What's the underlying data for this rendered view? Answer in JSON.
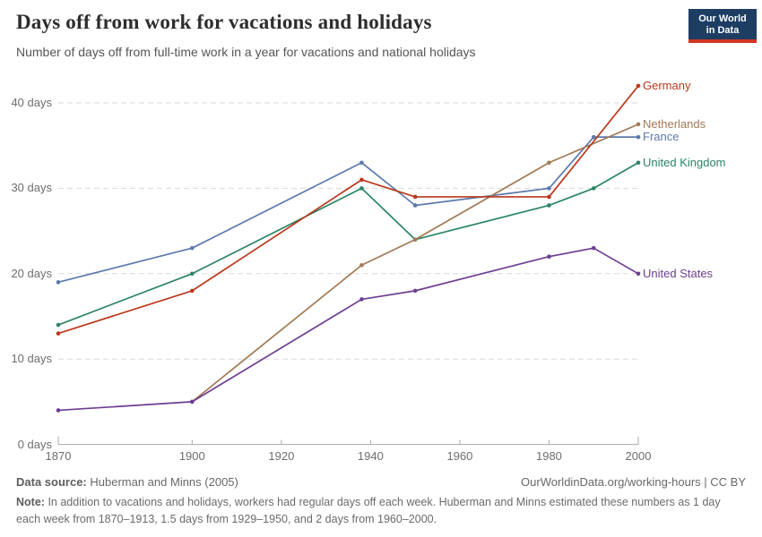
{
  "header": {
    "title": "Days off from work for vacations and holidays",
    "subtitle": "Number of days off from full-time work in a year for vacations and national holidays",
    "logo": {
      "line1": "Our World",
      "line2": "in Data",
      "bg_color": "#1d3d63",
      "accent_color": "#d33623"
    }
  },
  "chart_data": {
    "type": "line",
    "title": "Days off from work for vacations and holidays",
    "xlabel": "",
    "ylabel": "days",
    "xlim": [
      1870,
      2000
    ],
    "ylim": [
      0,
      43
    ],
    "grid": "horizontal-dashed",
    "legend_position": "right-end-labels",
    "x_ticks": [
      1870,
      1900,
      1920,
      1940,
      1960,
      1980,
      2000
    ],
    "y_ticks": [
      {
        "value": 0,
        "label": "0 days"
      },
      {
        "value": 10,
        "label": "10 days"
      },
      {
        "value": 20,
        "label": "20 days"
      },
      {
        "value": 30,
        "label": "30 days"
      },
      {
        "value": 40,
        "label": "40 days"
      }
    ],
    "series": [
      {
        "name": "France",
        "color": "#5d7aad",
        "points": [
          [
            1870,
            19
          ],
          [
            1900,
            23
          ],
          [
            1938,
            33
          ],
          [
            1950,
            28
          ],
          [
            1980,
            30
          ],
          [
            1990,
            36
          ],
          [
            2000,
            36
          ]
        ]
      },
      {
        "name": "United Kingdom",
        "color": "#2c8465",
        "points": [
          [
            1870,
            14
          ],
          [
            1900,
            20
          ],
          [
            1938,
            30
          ],
          [
            1950,
            24
          ],
          [
            1980,
            28
          ],
          [
            1990,
            30
          ],
          [
            2000,
            33
          ]
        ]
      },
      {
        "name": "Netherlands",
        "color": "#a27954",
        "points": [
          [
            1900,
            5
          ],
          [
            1938,
            21
          ],
          [
            1950,
            24
          ],
          [
            1980,
            33
          ],
          [
            2000,
            37.5
          ]
        ]
      },
      {
        "name": "Germany",
        "color": "#ba391d",
        "points": [
          [
            1870,
            13
          ],
          [
            1900,
            18
          ],
          [
            1938,
            31
          ],
          [
            1950,
            29
          ],
          [
            1980,
            29
          ],
          [
            2000,
            42
          ]
        ]
      },
      {
        "name": "United States",
        "color": "#6d3e91",
        "points": [
          [
            1870,
            4
          ],
          [
            1900,
            5
          ],
          [
            1938,
            17
          ],
          [
            1950,
            18
          ],
          [
            1980,
            22
          ],
          [
            1990,
            23
          ],
          [
            2000,
            20
          ]
        ]
      }
    ]
  },
  "footer": {
    "source_label": "Data source:",
    "source_value": "Huberman and Minns (2005)",
    "credit": "OurWorldinData.org/working-hours | CC BY",
    "note_label": "Note:",
    "note_text": "In addition to vacations and holidays, workers had regular days off each week. Huberman and Minns estimated these numbers as 1 day each week from 1870–1913, 1.5 days from 1929–1950, and 2 days from 1960–2000."
  }
}
